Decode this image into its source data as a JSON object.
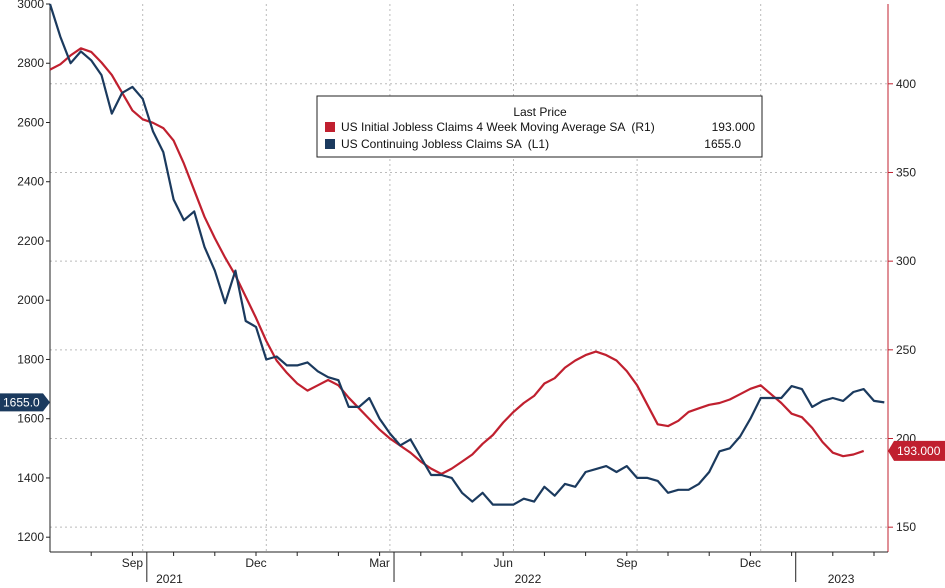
{
  "chart_data": {
    "type": "line",
    "legend": {
      "title": "Last Price",
      "placement": "top-center",
      "entries": [
        {
          "label": "US Initial Jobless Claims 4 Week Moving Average SA  (R1)",
          "value": "193.000",
          "color": "#c0202f"
        },
        {
          "label": "US Continuing Jobless Claims SA  (L1)",
          "value": "1655.0",
          "color": "#1b3a5e"
        }
      ]
    },
    "last_value_tags": {
      "left": "1655.0",
      "right": "193.000"
    },
    "left_axis": {
      "ylim": [
        1150,
        3000
      ],
      "ticks": [
        "1200",
        "1400",
        "1600",
        "1800",
        "2000",
        "2200",
        "2400",
        "2600",
        "2800",
        "3000"
      ]
    },
    "right_axis": {
      "ylim": [
        136,
        445
      ],
      "ticks": [
        "150",
        "200",
        "250",
        "300",
        "350",
        "400"
      ]
    },
    "x_axis": {
      "month_labels": [
        "Sep",
        "Dec",
        "Mar",
        "Jun",
        "Sep",
        "Dec"
      ],
      "year_labels": [
        "2021",
        "2022",
        "2023"
      ]
    },
    "grid": true,
    "series": [
      {
        "name": "US Initial Jobless Claims 4 Week Moving Average SA  (R1)",
        "axis": "right",
        "color": "#c0202f",
        "points": [
          [
            0,
            408
          ],
          [
            0.25,
            411
          ],
          [
            0.5,
            416
          ],
          [
            0.75,
            420
          ],
          [
            1.0,
            418
          ],
          [
            1.25,
            412
          ],
          [
            1.5,
            405
          ],
          [
            1.75,
            395
          ],
          [
            2.0,
            385
          ],
          [
            2.25,
            380
          ],
          [
            2.5,
            378
          ],
          [
            2.75,
            375
          ],
          [
            3.0,
            368
          ],
          [
            3.25,
            355
          ],
          [
            3.5,
            340
          ],
          [
            3.75,
            325
          ],
          [
            4.0,
            313
          ],
          [
            4.25,
            302
          ],
          [
            4.5,
            292
          ],
          [
            4.75,
            280
          ],
          [
            5.0,
            268
          ],
          [
            5.25,
            255
          ],
          [
            5.5,
            244
          ],
          [
            5.75,
            237
          ],
          [
            6.0,
            231
          ],
          [
            6.25,
            227
          ],
          [
            6.5,
            230
          ],
          [
            6.75,
            233
          ],
          [
            7.0,
            230
          ],
          [
            7.25,
            223
          ],
          [
            7.5,
            217
          ],
          [
            7.75,
            211
          ],
          [
            8.0,
            205
          ],
          [
            8.25,
            200
          ],
          [
            8.5,
            196
          ],
          [
            8.75,
            192
          ],
          [
            9.0,
            187
          ],
          [
            9.25,
            183
          ],
          [
            9.5,
            180
          ],
          [
            9.75,
            183
          ],
          [
            10.0,
            187
          ],
          [
            10.25,
            191
          ],
          [
            10.5,
            197
          ],
          [
            10.75,
            202
          ],
          [
            11.0,
            209
          ],
          [
            11.25,
            215
          ],
          [
            11.5,
            220
          ],
          [
            11.75,
            224
          ],
          [
            12.0,
            231
          ],
          [
            12.25,
            234
          ],
          [
            12.5,
            240
          ],
          [
            12.75,
            244
          ],
          [
            13.0,
            247
          ],
          [
            13.25,
            249
          ],
          [
            13.5,
            247
          ],
          [
            13.75,
            244
          ],
          [
            14.0,
            238
          ],
          [
            14.25,
            230
          ],
          [
            14.5,
            219
          ],
          [
            14.75,
            208
          ],
          [
            15.0,
            207
          ],
          [
            15.25,
            210
          ],
          [
            15.5,
            215
          ],
          [
            15.75,
            217
          ],
          [
            16.0,
            219
          ],
          [
            16.25,
            220
          ],
          [
            16.5,
            222
          ],
          [
            16.75,
            225
          ],
          [
            17.0,
            228
          ],
          [
            17.25,
            230
          ],
          [
            17.5,
            225
          ],
          [
            17.75,
            220
          ],
          [
            18.0,
            214
          ],
          [
            18.25,
            212
          ],
          [
            18.5,
            206
          ],
          [
            18.75,
            198
          ],
          [
            19.0,
            192
          ],
          [
            19.25,
            190
          ],
          [
            19.5,
            191
          ],
          [
            19.75,
            193
          ]
        ]
      },
      {
        "name": "US Continuing Jobless Claims SA  (L1)",
        "axis": "left",
        "color": "#1b3a5e",
        "points": [
          [
            0,
            3000
          ],
          [
            0.25,
            2890
          ],
          [
            0.5,
            2800
          ],
          [
            0.75,
            2840
          ],
          [
            1.0,
            2810
          ],
          [
            1.25,
            2760
          ],
          [
            1.5,
            2630
          ],
          [
            1.75,
            2700
          ],
          [
            2.0,
            2720
          ],
          [
            2.25,
            2680
          ],
          [
            2.5,
            2570
          ],
          [
            2.75,
            2500
          ],
          [
            3.0,
            2340
          ],
          [
            3.25,
            2270
          ],
          [
            3.5,
            2300
          ],
          [
            3.75,
            2180
          ],
          [
            4.0,
            2100
          ],
          [
            4.25,
            1990
          ],
          [
            4.5,
            2100
          ],
          [
            4.75,
            1930
          ],
          [
            5.0,
            1910
          ],
          [
            5.25,
            1800
          ],
          [
            5.5,
            1810
          ],
          [
            5.75,
            1780
          ],
          [
            6.0,
            1780
          ],
          [
            6.25,
            1790
          ],
          [
            6.5,
            1760
          ],
          [
            6.75,
            1740
          ],
          [
            7.0,
            1730
          ],
          [
            7.25,
            1640
          ],
          [
            7.5,
            1640
          ],
          [
            7.75,
            1670
          ],
          [
            8.0,
            1600
          ],
          [
            8.25,
            1550
          ],
          [
            8.5,
            1510
          ],
          [
            8.75,
            1530
          ],
          [
            9.0,
            1470
          ],
          [
            9.25,
            1410
          ],
          [
            9.5,
            1410
          ],
          [
            9.75,
            1400
          ],
          [
            10.0,
            1350
          ],
          [
            10.25,
            1320
          ],
          [
            10.5,
            1350
          ],
          [
            10.75,
            1310
          ],
          [
            11.0,
            1310
          ],
          [
            11.25,
            1310
          ],
          [
            11.5,
            1330
          ],
          [
            11.75,
            1320
          ],
          [
            12.0,
            1370
          ],
          [
            12.25,
            1340
          ],
          [
            12.5,
            1380
          ],
          [
            12.75,
            1370
          ],
          [
            13.0,
            1420
          ],
          [
            13.25,
            1430
          ],
          [
            13.5,
            1440
          ],
          [
            13.75,
            1420
          ],
          [
            14.0,
            1440
          ],
          [
            14.25,
            1400
          ],
          [
            14.5,
            1400
          ],
          [
            14.75,
            1390
          ],
          [
            15.0,
            1350
          ],
          [
            15.25,
            1360
          ],
          [
            15.5,
            1360
          ],
          [
            15.75,
            1380
          ],
          [
            16.0,
            1420
          ],
          [
            16.25,
            1490
          ],
          [
            16.5,
            1500
          ],
          [
            16.75,
            1540
          ],
          [
            17.0,
            1600
          ],
          [
            17.25,
            1670
          ],
          [
            17.5,
            1670
          ],
          [
            17.75,
            1670
          ],
          [
            18.0,
            1710
          ],
          [
            18.25,
            1700
          ],
          [
            18.5,
            1640
          ],
          [
            18.75,
            1660
          ],
          [
            19.0,
            1670
          ],
          [
            19.25,
            1660
          ],
          [
            19.5,
            1690
          ],
          [
            19.75,
            1700
          ],
          [
            20.0,
            1660
          ],
          [
            20.25,
            1655
          ]
        ]
      }
    ]
  }
}
